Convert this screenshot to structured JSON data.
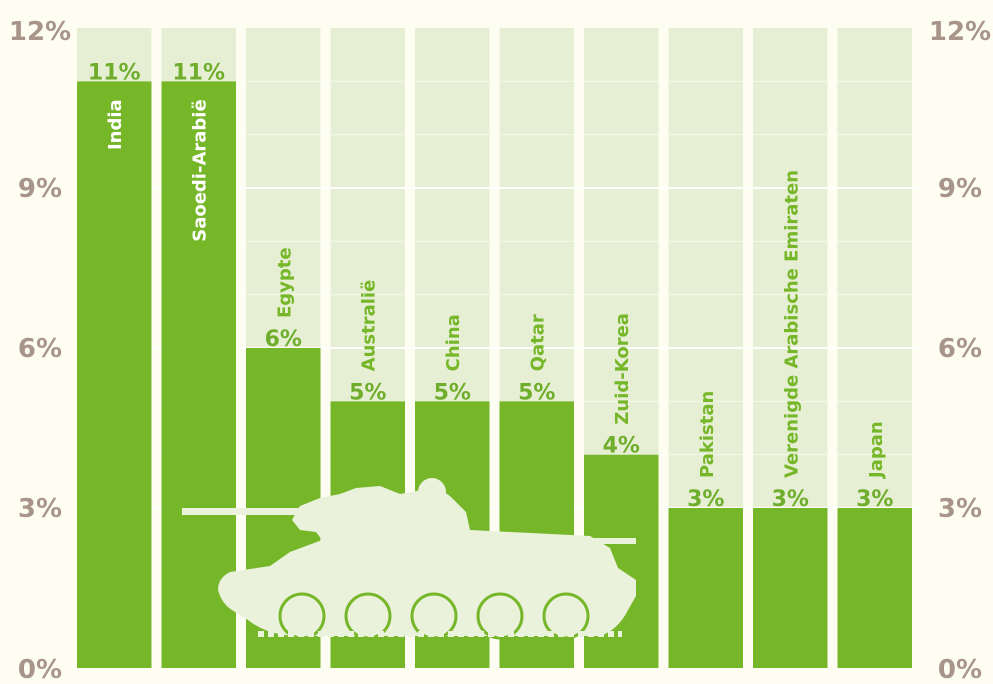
{
  "chart_data": {
    "type": "bar",
    "categories": [
      "India",
      "Saoedi-Arabië",
      "Egypte",
      "Australië",
      "China",
      "Qatar",
      "Zuid-Korea",
      "Pakistan",
      "Verenigde Arabische Emiraten",
      "Japan"
    ],
    "values": [
      11,
      11,
      6,
      5,
      5,
      5,
      4,
      3,
      3,
      3
    ],
    "value_labels": [
      "11%",
      "11%",
      "6%",
      "5%",
      "5%",
      "5%",
      "4%",
      "3%",
      "3%",
      "3%"
    ],
    "yticks": [
      0,
      3,
      6,
      9,
      12
    ],
    "ytick_labels": [
      "0%",
      "3%",
      "6%",
      "9%",
      "12%"
    ],
    "ylim": [
      0,
      12
    ],
    "grid": true,
    "title": "",
    "xlabel": "",
    "ylabel": "",
    "colors": {
      "bar": "#76b72a",
      "column_bg": "#e6efd3",
      "page_bg": "#fefdf2",
      "tick": "#a8958a",
      "value_label": "#6fae2c",
      "label_inside": "#ffffff",
      "label_outside": "#76b72a",
      "tank": "#eaf2dc"
    },
    "decoration_icon": "tank-silhouette"
  }
}
